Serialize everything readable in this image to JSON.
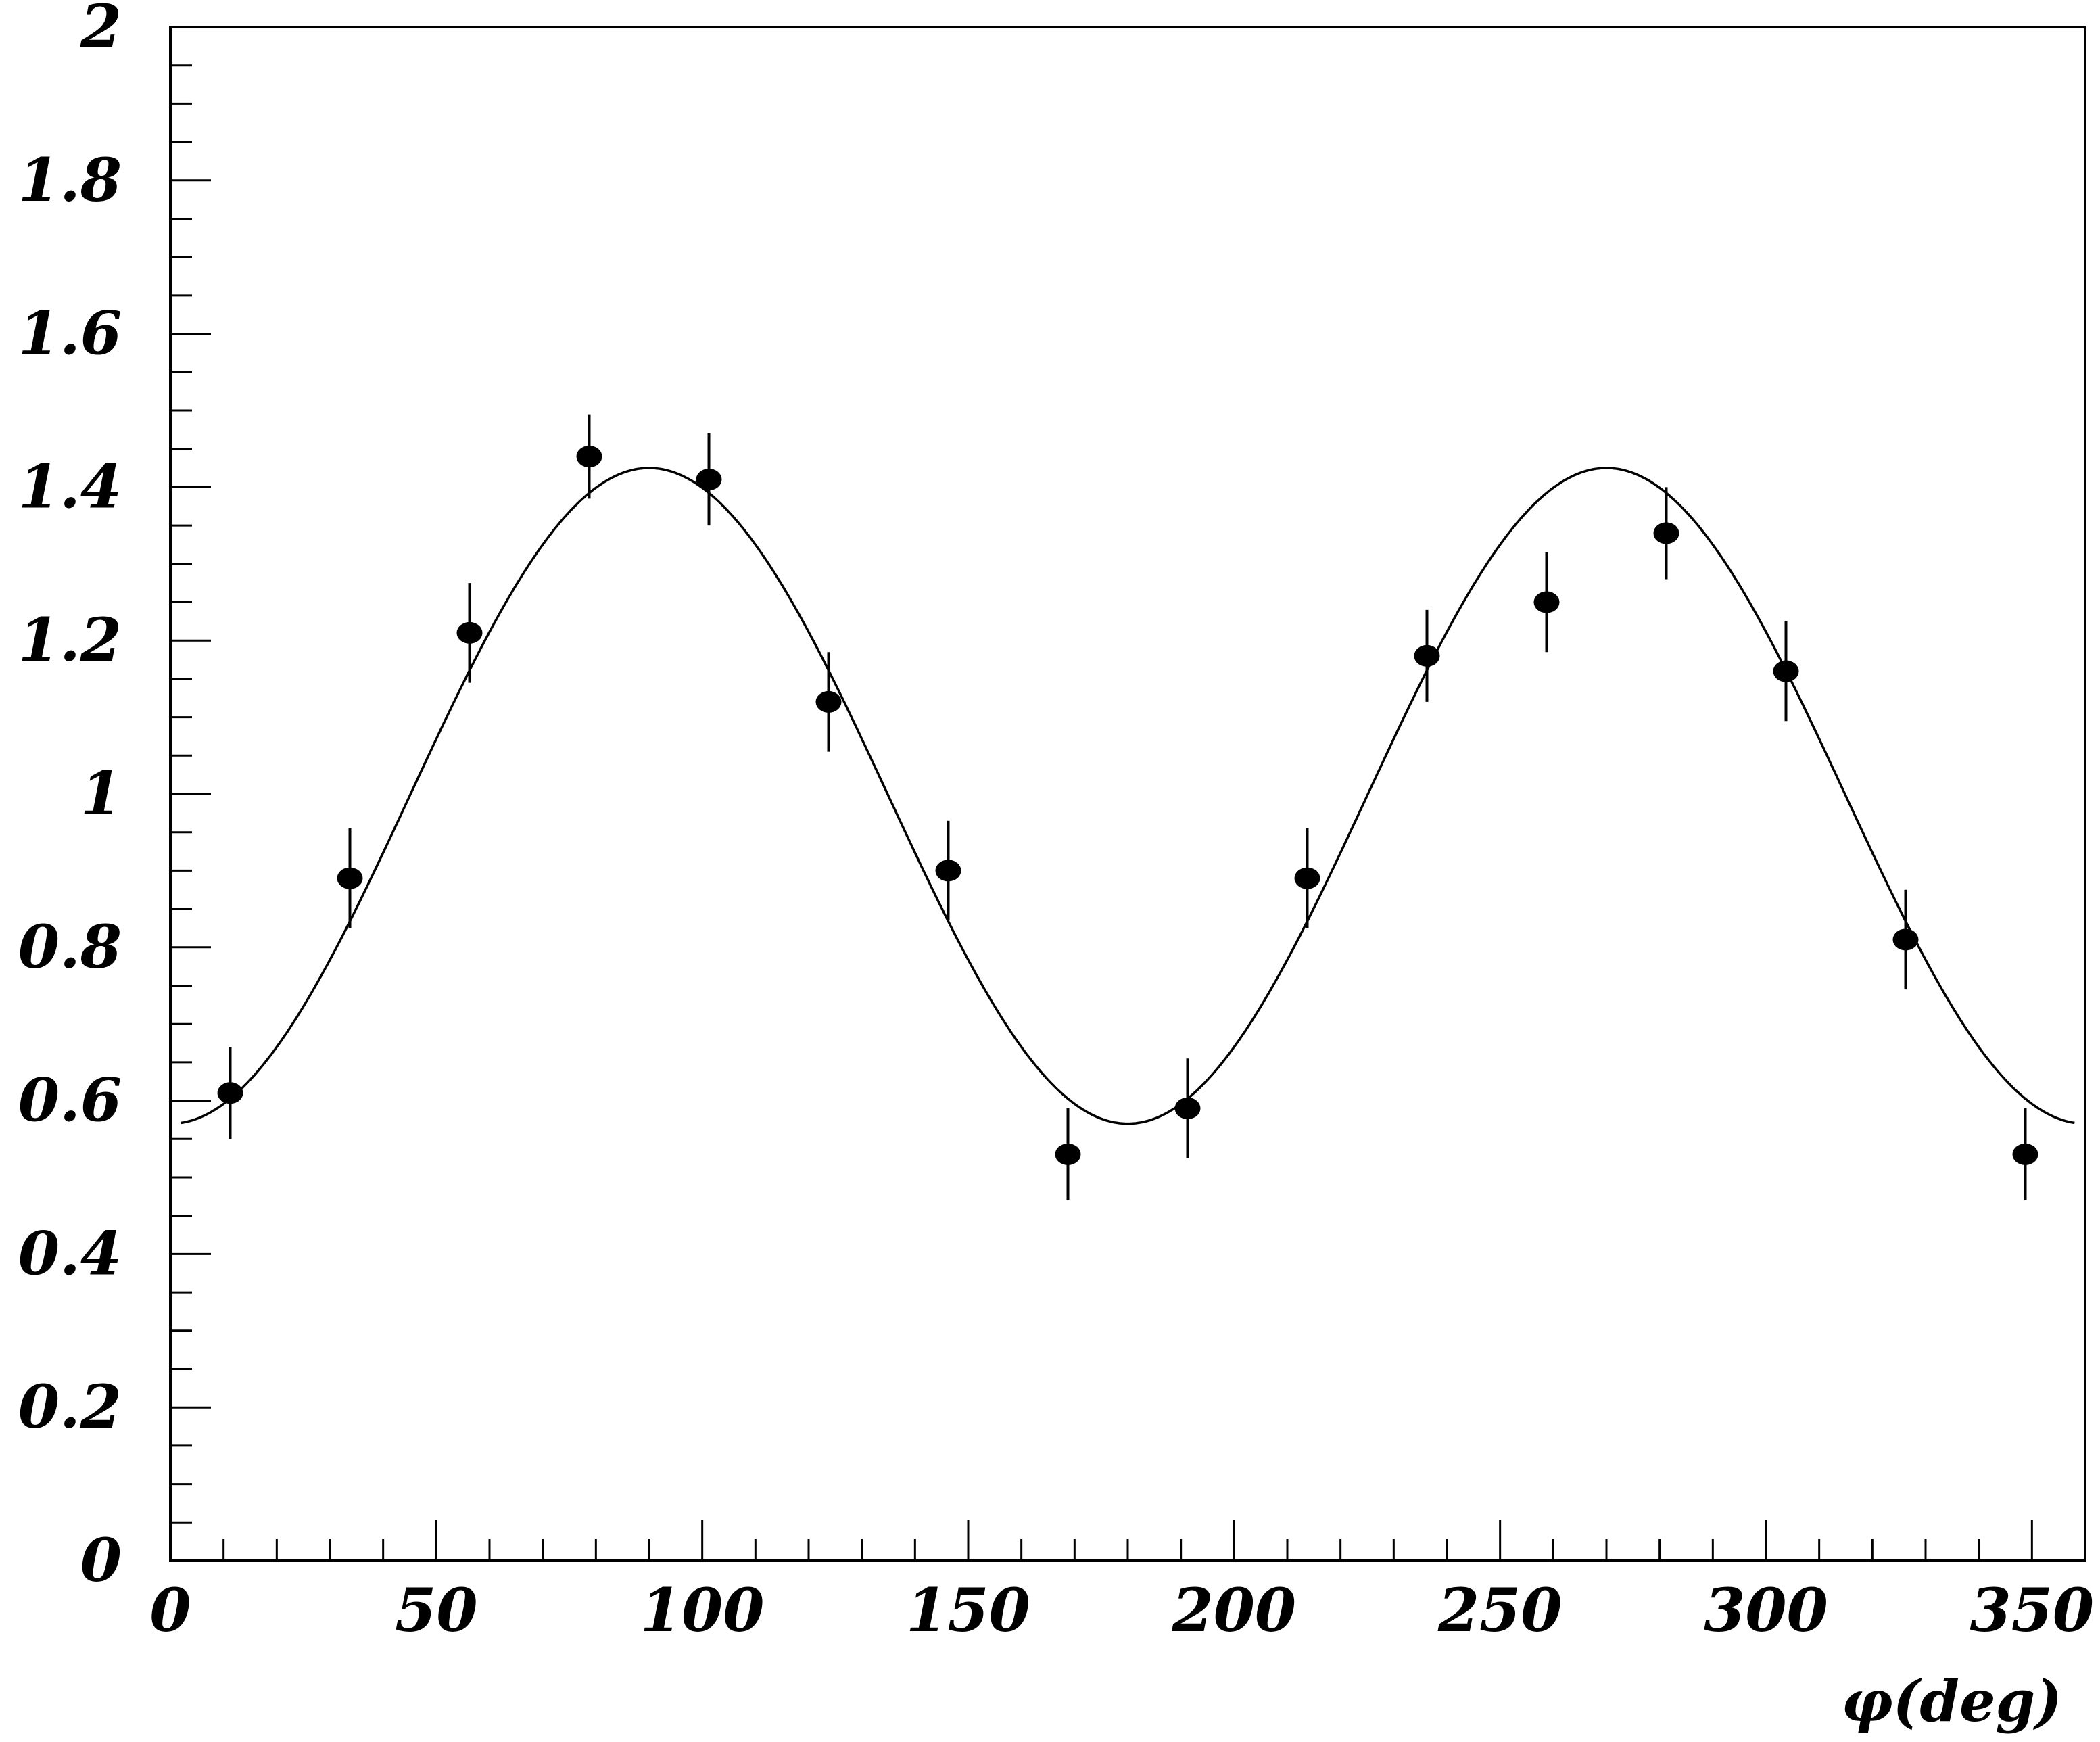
{
  "chart_data": {
    "type": "scatter",
    "title": "",
    "xlabel": "φ(deg)",
    "ylabel": "",
    "xlim": [
      0,
      360
    ],
    "ylim": [
      0,
      2
    ],
    "x_ticks": [
      0,
      50,
      100,
      150,
      200,
      250,
      300,
      350
    ],
    "y_ticks": [
      0,
      0.2,
      0.4,
      0.6,
      0.8,
      1,
      1.2,
      1.4,
      1.6,
      1.8,
      2
    ],
    "y_tick_labels": [
      "0",
      "0.2",
      "0.4",
      "0.6",
      "0.8",
      "1",
      "1.2",
      "1.4",
      "1.6",
      "1.8",
      "2"
    ],
    "x_tick_labels": [
      "0",
      "50",
      "100",
      "150",
      "200",
      "250",
      "300",
      "350"
    ],
    "grid": false,
    "legend": "none",
    "series": [
      {
        "kind": "points-with-errors",
        "x": [
          11.25,
          33.75,
          56.25,
          78.75,
          101.25,
          123.75,
          146.25,
          168.75,
          191.25,
          213.75,
          236.25,
          258.75,
          281.25,
          303.75,
          326.25,
          348.75
        ],
        "y": [
          0.61,
          0.89,
          1.21,
          1.44,
          1.41,
          1.12,
          0.9,
          0.53,
          0.59,
          0.89,
          1.18,
          1.25,
          1.34,
          1.16,
          0.81,
          0.53
        ],
        "yerr": [
          0.06,
          0.065,
          0.065,
          0.055,
          0.06,
          0.065,
          0.065,
          0.06,
          0.065,
          0.065,
          0.06,
          0.065,
          0.06,
          0.065,
          0.065,
          0.06
        ]
      },
      {
        "kind": "fit-curve",
        "model": "a + b*sin^2(phi)",
        "a": 0.57,
        "b": 0.855,
        "x_range": [
          2,
          358
        ]
      }
    ]
  }
}
